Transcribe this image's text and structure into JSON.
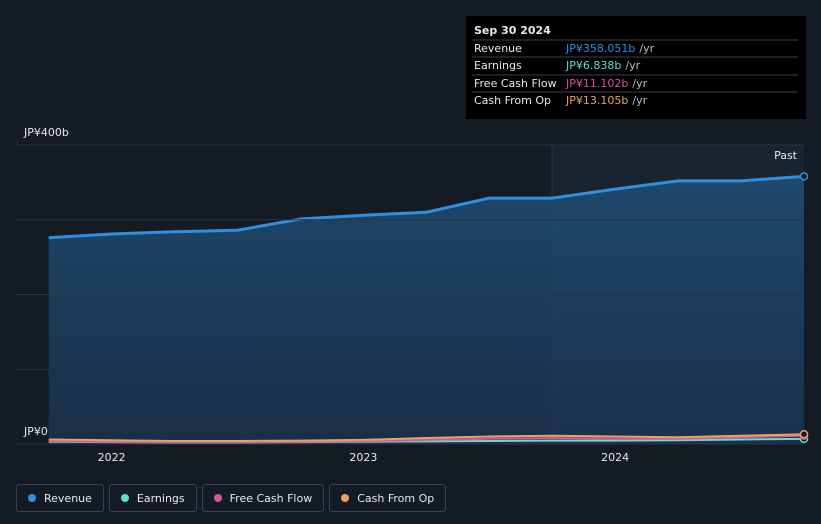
{
  "chart_data": {
    "type": "line",
    "x": [
      2021.75,
      2022.0,
      2022.25,
      2022.5,
      2022.75,
      2023.0,
      2023.25,
      2023.5,
      2023.75,
      2024.0,
      2024.25,
      2024.5,
      2024.75
    ],
    "series": [
      {
        "name": "Revenue",
        "color": "#2f8fe0",
        "values": [
          276,
          281,
          284,
          286,
          301,
          306,
          310,
          329,
          329,
          341,
          352,
          352,
          358.051
        ]
      },
      {
        "name": "Earnings",
        "color": "#5fe0c8",
        "values": [
          3,
          2.5,
          2,
          2,
          2.5,
          3,
          3.5,
          4,
          4.5,
          4.5,
          5,
          6,
          6.838
        ]
      },
      {
        "name": "Free Cash Flow",
        "color": "#d9559a",
        "values": [
          4,
          3,
          2.5,
          2.5,
          3,
          4,
          5.5,
          7,
          8,
          7,
          7,
          9,
          11.102
        ]
      },
      {
        "name": "Cash From Op",
        "color": "#e8a45b",
        "values": [
          6,
          5,
          4,
          4,
          4.5,
          5.5,
          8,
          10,
          11,
          10,
          9,
          11,
          13.105
        ]
      }
    ],
    "xlim": [
      2021.62,
      2024.75
    ],
    "xticks": [
      2022,
      2023,
      2024
    ],
    "ylim": [
      0,
      400
    ],
    "yticks": [
      {
        "value": 0,
        "label": "JP¥0"
      },
      {
        "value": 100,
        "label": null
      },
      {
        "value": 200,
        "label": null
      },
      {
        "value": 300,
        "label": null
      },
      {
        "value": 400,
        "label": "JP¥400b"
      }
    ],
    "grid": true,
    "past_label": "Past",
    "tooltip": {
      "date": "Sep 30 2024",
      "values": [
        "JP¥358.051b",
        "JP¥6.838b",
        "JP¥11.102b",
        "JP¥13.105b"
      ],
      "unit": "/yr"
    }
  }
}
